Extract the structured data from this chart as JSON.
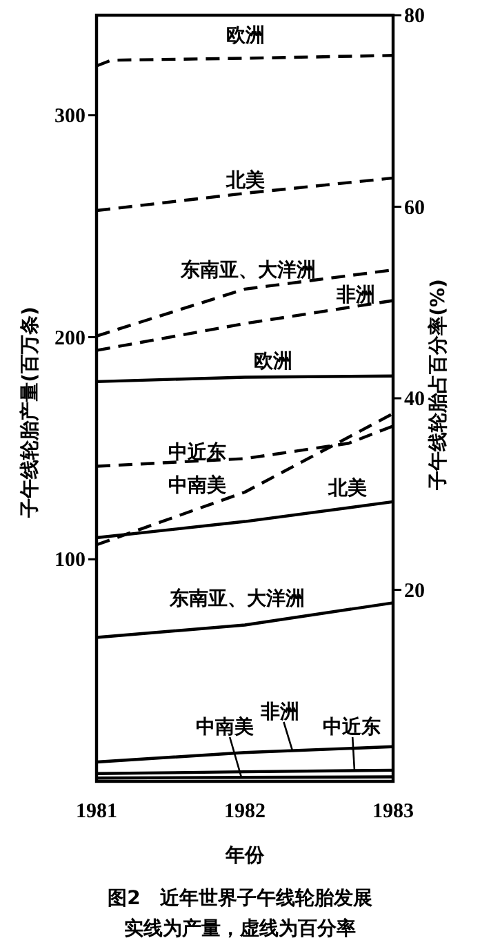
{
  "chart_data": {
    "type": "line",
    "title": "图2　近年世界子午线轮胎发展",
    "subtitle": "实线为产量，虚线为百分率",
    "xlabel": "年份",
    "ylabel": "子午线轮胎产量(百万条)",
    "y2label": "子午线轮胎占百分率(%)",
    "xlim": [
      1981,
      1983
    ],
    "xticks": [
      1981,
      1982,
      1983
    ],
    "ylim": [
      0,
      345
    ],
    "yticks": [
      100,
      200,
      300
    ],
    "y2lim": [
      0,
      80
    ],
    "y2ticks": [
      20,
      40,
      60,
      80
    ],
    "grid": false,
    "marker": "none",
    "series": [
      {
        "name": "欧洲",
        "color": "#000000",
        "axis": "y2",
        "line_style": "dashed",
        "x": [
          1981,
          1981.1,
          1982,
          1983
        ],
        "values": [
          74.7,
          75.3,
          75.5,
          75.8
        ]
      },
      {
        "name": "北美",
        "color": "#000000",
        "axis": "y2",
        "line_style": "dashed",
        "x": [
          1981,
          1982,
          1983
        ],
        "values": [
          59.6,
          61.4,
          63.0
        ]
      },
      {
        "name": "东南亚、大洋洲",
        "color": "#000000",
        "axis": "y2",
        "line_style": "dashed",
        "x": [
          1981,
          1982,
          1983
        ],
        "values": [
          46.5,
          51.4,
          53.4
        ]
      },
      {
        "name": "非洲",
        "color": "#000000",
        "axis": "y2",
        "line_style": "dashed",
        "x": [
          1981,
          1982,
          1983
        ],
        "values": [
          45.0,
          47.8,
          50.2
        ]
      },
      {
        "name": "中近东",
        "color": "#000000",
        "axis": "y2",
        "line_style": "dashed",
        "x": [
          1981,
          1982,
          1982.7,
          1983
        ],
        "values": [
          32.9,
          33.7,
          35.3,
          37.1
        ]
      },
      {
        "name": "中南美",
        "color": "#000000",
        "axis": "y2",
        "line_style": "dashed",
        "x": [
          1981,
          1982,
          1983
        ],
        "values": [
          24.7,
          30.2,
          38.4
        ]
      },
      {
        "name": "欧洲",
        "color": "#000000",
        "axis": "y",
        "line_style": "solid",
        "x": [
          1981,
          1982,
          1983
        ],
        "values": [
          180,
          182,
          182.5
        ]
      },
      {
        "name": "北美",
        "color": "#000000",
        "axis": "y",
        "line_style": "solid",
        "x": [
          1981,
          1982,
          1983
        ],
        "values": [
          109.7,
          117,
          125.9
        ]
      },
      {
        "name": "东南亚、大洋洲",
        "color": "#000000",
        "axis": "y",
        "line_style": "solid",
        "x": [
          1981,
          1982,
          1983
        ],
        "values": [
          64.8,
          70.4,
          80.4
        ]
      },
      {
        "name": "非洲",
        "color": "#000000",
        "axis": "y",
        "line_style": "solid",
        "x": [
          1981,
          1982,
          1983
        ],
        "values": [
          8.7,
          13,
          15.6
        ]
      },
      {
        "name": "中近东",
        "color": "#000000",
        "axis": "y",
        "line_style": "solid",
        "x": [
          1981,
          1982,
          1983
        ],
        "values": [
          3.5,
          4.3,
          5
        ]
      },
      {
        "name": "中南美",
        "color": "#000000",
        "axis": "y",
        "line_style": "solid",
        "x": [
          1981,
          1982,
          1983
        ],
        "values": [
          1.5,
          1.8,
          2
        ]
      }
    ]
  }
}
